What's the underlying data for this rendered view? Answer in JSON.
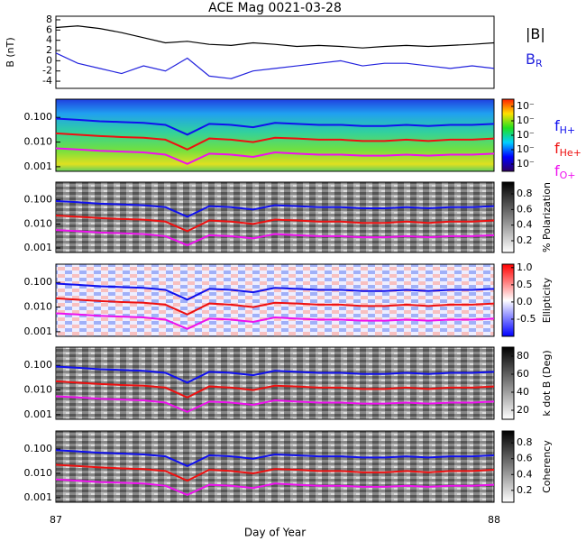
{
  "title": "ACE Mag 0021-03-28",
  "x_label": "Day of Year",
  "xlim": [
    87,
    88
  ],
  "xticks": [
    87,
    88
  ],
  "chart_data": [
    {
      "type": "line",
      "y_label": "B (nT)",
      "ylim": [
        -5.4,
        8.7
      ],
      "yticks": [
        -4,
        -2,
        0,
        2,
        4,
        6,
        8
      ],
      "x": [
        87,
        87.05,
        87.1,
        87.15,
        87.2,
        87.25,
        87.3,
        87.35,
        87.4,
        87.45,
        87.5,
        87.55,
        87.6,
        87.65,
        87.7,
        87.75,
        87.8,
        87.85,
        87.9,
        87.95,
        88
      ],
      "series": [
        {
          "name": "|B|",
          "color": "#000000",
          "values": [
            6.5,
            6.8,
            6.3,
            5.5,
            4.5,
            3.5,
            3.8,
            3.2,
            3.0,
            3.5,
            3.2,
            2.8,
            3.0,
            2.8,
            2.5,
            2.8,
            3.0,
            2.8,
            3.0,
            3.2,
            3.5
          ]
        },
        {
          "name": "B",
          "name_sub": "R",
          "color": "#2222dd",
          "values": [
            1.5,
            -0.5,
            -1.5,
            -2.5,
            -1.0,
            -2.0,
            0.5,
            -3.0,
            -3.5,
            -2.0,
            -1.5,
            -1.0,
            -0.5,
            0,
            -1.0,
            -0.5,
            -0.5,
            -1.0,
            -1.5,
            -1.0,
            -1.5
          ]
        }
      ]
    },
    {
      "type": "spectrogram",
      "colormap": "rainbow",
      "log_y": true,
      "ylim": [
        0.00065,
        0.55
      ],
      "yticks": [
        {
          "value": 0.001,
          "label": "0.001"
        },
        {
          "value": 0.01,
          "label": "0.010"
        },
        {
          "value": 0.1,
          "label": "0.100"
        }
      ],
      "clim": [
        0,
        5
      ],
      "cticks": [
        {
          "value": 0.5,
          "label": "10⁻"
        },
        {
          "value": 1.5,
          "label": "10⁻"
        },
        {
          "value": 2.5,
          "label": "10⁻"
        },
        {
          "value": 3.5,
          "label": "10⁻"
        },
        {
          "value": 4.5,
          "label": "10⁻"
        }
      ],
      "x": [
        87,
        87.05,
        87.1,
        87.15,
        87.2,
        87.25,
        87.3,
        87.35,
        87.4,
        87.45,
        87.5,
        87.55,
        87.6,
        87.65,
        87.7,
        87.75,
        87.8,
        87.85,
        87.9,
        87.95,
        88
      ],
      "series": [
        {
          "name": "f",
          "name_sub": "H+",
          "color": "#1010ee",
          "values": [
            0.09,
            0.08,
            0.07,
            0.065,
            0.06,
            0.05,
            0.02,
            0.055,
            0.05,
            0.04,
            0.06,
            0.055,
            0.05,
            0.05,
            0.045,
            0.045,
            0.05,
            0.045,
            0.05,
            0.05,
            0.055
          ]
        },
        {
          "name": "f",
          "name_sub": "He+",
          "color": "#ee1010",
          "values": [
            0.0225,
            0.02,
            0.0175,
            0.016,
            0.015,
            0.0125,
            0.005,
            0.014,
            0.0125,
            0.01,
            0.015,
            0.014,
            0.0125,
            0.0125,
            0.011,
            0.011,
            0.0125,
            0.011,
            0.0125,
            0.0125,
            0.014
          ]
        },
        {
          "name": "f",
          "name_sub": "O+",
          "color": "#ee10ee",
          "values": [
            0.0056,
            0.005,
            0.0044,
            0.0041,
            0.0038,
            0.0031,
            0.0013,
            0.0034,
            0.0031,
            0.0025,
            0.0038,
            0.0034,
            0.0031,
            0.0031,
            0.0028,
            0.0028,
            0.0031,
            0.0028,
            0.0031,
            0.0031,
            0.0034
          ]
        }
      ]
    },
    {
      "type": "spectrogram",
      "colormap": "gray",
      "log_y": true,
      "ylim": [
        0.00065,
        0.55
      ],
      "yticks": [
        {
          "value": 0.001,
          "label": "0.001"
        },
        {
          "value": 0.01,
          "label": "0.010"
        },
        {
          "value": 0.1,
          "label": "0.100"
        }
      ],
      "colorbar_label": "% Polarization",
      "clim": [
        0.05,
        0.95
      ],
      "cticks": [
        0.2,
        0.4,
        0.6,
        0.8
      ],
      "x": [
        87,
        87.05,
        87.1,
        87.15,
        87.2,
        87.25,
        87.3,
        87.35,
        87.4,
        87.45,
        87.5,
        87.55,
        87.6,
        87.65,
        87.7,
        87.75,
        87.8,
        87.85,
        87.9,
        87.95,
        88
      ],
      "series": [
        {
          "color": "#1010ee",
          "values": [
            0.09,
            0.08,
            0.07,
            0.065,
            0.06,
            0.05,
            0.02,
            0.055,
            0.05,
            0.04,
            0.06,
            0.055,
            0.05,
            0.05,
            0.045,
            0.045,
            0.05,
            0.045,
            0.05,
            0.05,
            0.055
          ]
        },
        {
          "color": "#ee1010",
          "values": [
            0.0225,
            0.02,
            0.0175,
            0.016,
            0.015,
            0.0125,
            0.005,
            0.014,
            0.0125,
            0.01,
            0.015,
            0.014,
            0.0125,
            0.0125,
            0.011,
            0.011,
            0.0125,
            0.011,
            0.0125,
            0.0125,
            0.014
          ]
        },
        {
          "color": "#ee10ee",
          "values": [
            0.0056,
            0.005,
            0.0044,
            0.0041,
            0.0038,
            0.0031,
            0.0013,
            0.0034,
            0.0031,
            0.0025,
            0.0038,
            0.0034,
            0.0031,
            0.0031,
            0.0028,
            0.0028,
            0.0031,
            0.0028,
            0.0031,
            0.0031,
            0.0034
          ]
        }
      ]
    },
    {
      "type": "spectrogram",
      "colormap": "bwr",
      "log_y": true,
      "ylim": [
        0.00065,
        0.55
      ],
      "yticks": [
        {
          "value": 0.001,
          "label": "0.001"
        },
        {
          "value": 0.01,
          "label": "0.010"
        },
        {
          "value": 0.1,
          "label": "0.100"
        }
      ],
      "colorbar_label": "Ellipticity",
      "clim": [
        -1,
        1.1
      ],
      "cticks": [
        -0.5,
        {
          "value": 0,
          "label": "0.0"
        },
        0.5,
        {
          "value": 1,
          "label": "1.0"
        }
      ],
      "x": [
        87,
        87.05,
        87.1,
        87.15,
        87.2,
        87.25,
        87.3,
        87.35,
        87.4,
        87.45,
        87.5,
        87.55,
        87.6,
        87.65,
        87.7,
        87.75,
        87.8,
        87.85,
        87.9,
        87.95,
        88
      ],
      "series": [
        {
          "color": "#1010ee",
          "values": [
            0.09,
            0.08,
            0.07,
            0.065,
            0.06,
            0.05,
            0.02,
            0.055,
            0.05,
            0.04,
            0.06,
            0.055,
            0.05,
            0.05,
            0.045,
            0.045,
            0.05,
            0.045,
            0.05,
            0.05,
            0.055
          ]
        },
        {
          "color": "#ee1010",
          "values": [
            0.0225,
            0.02,
            0.0175,
            0.016,
            0.015,
            0.0125,
            0.005,
            0.014,
            0.0125,
            0.01,
            0.015,
            0.014,
            0.0125,
            0.0125,
            0.011,
            0.011,
            0.0125,
            0.011,
            0.0125,
            0.0125,
            0.014
          ]
        },
        {
          "color": "#ee10ee",
          "values": [
            0.0056,
            0.005,
            0.0044,
            0.0041,
            0.0038,
            0.0031,
            0.0013,
            0.0034,
            0.0031,
            0.0025,
            0.0038,
            0.0034,
            0.0031,
            0.0031,
            0.0028,
            0.0028,
            0.0031,
            0.0028,
            0.0031,
            0.0031,
            0.0034
          ]
        }
      ]
    },
    {
      "type": "spectrogram",
      "colormap": "gray",
      "log_y": true,
      "ylim": [
        0.00065,
        0.55
      ],
      "yticks": [
        {
          "value": 0.001,
          "label": "0.001"
        },
        {
          "value": 0.01,
          "label": "0.010"
        },
        {
          "value": 0.1,
          "label": "0.100"
        }
      ],
      "colorbar_label": "k dot B (Deg)",
      "clim": [
        10,
        90
      ],
      "cticks": [
        20,
        40,
        60,
        80
      ],
      "x": [
        87,
        87.05,
        87.1,
        87.15,
        87.2,
        87.25,
        87.3,
        87.35,
        87.4,
        87.45,
        87.5,
        87.55,
        87.6,
        87.65,
        87.7,
        87.75,
        87.8,
        87.85,
        87.9,
        87.95,
        88
      ],
      "series": [
        {
          "color": "#1010ee",
          "values": [
            0.09,
            0.08,
            0.07,
            0.065,
            0.06,
            0.05,
            0.02,
            0.055,
            0.05,
            0.04,
            0.06,
            0.055,
            0.05,
            0.05,
            0.045,
            0.045,
            0.05,
            0.045,
            0.05,
            0.05,
            0.055
          ]
        },
        {
          "color": "#ee1010",
          "values": [
            0.0225,
            0.02,
            0.0175,
            0.016,
            0.015,
            0.0125,
            0.005,
            0.014,
            0.0125,
            0.01,
            0.015,
            0.014,
            0.0125,
            0.0125,
            0.011,
            0.011,
            0.0125,
            0.011,
            0.0125,
            0.0125,
            0.014
          ]
        },
        {
          "color": "#ee10ee",
          "values": [
            0.0056,
            0.005,
            0.0044,
            0.0041,
            0.0038,
            0.0031,
            0.0013,
            0.0034,
            0.0031,
            0.0025,
            0.0038,
            0.0034,
            0.0031,
            0.0031,
            0.0028,
            0.0028,
            0.0031,
            0.0028,
            0.0031,
            0.0031,
            0.0034
          ]
        }
      ]
    },
    {
      "type": "spectrogram",
      "colormap": "gray",
      "log_y": true,
      "ylim": [
        0.00065,
        0.55
      ],
      "yticks": [
        {
          "value": 0.001,
          "label": "0.001"
        },
        {
          "value": 0.01,
          "label": "0.010"
        },
        {
          "value": 0.1,
          "label": "0.100"
        }
      ],
      "colorbar_label": "Coherency",
      "clim": [
        0.05,
        0.95
      ],
      "cticks": [
        0.2,
        0.4,
        0.6,
        0.8
      ],
      "x": [
        87,
        87.05,
        87.1,
        87.15,
        87.2,
        87.25,
        87.3,
        87.35,
        87.4,
        87.45,
        87.5,
        87.55,
        87.6,
        87.65,
        87.7,
        87.75,
        87.8,
        87.85,
        87.9,
        87.95,
        88
      ],
      "series": [
        {
          "color": "#1010ee",
          "values": [
            0.09,
            0.08,
            0.07,
            0.065,
            0.06,
            0.05,
            0.02,
            0.055,
            0.05,
            0.04,
            0.06,
            0.055,
            0.05,
            0.05,
            0.045,
            0.045,
            0.05,
            0.045,
            0.05,
            0.05,
            0.055
          ]
        },
        {
          "color": "#ee1010",
          "values": [
            0.0225,
            0.02,
            0.0175,
            0.016,
            0.015,
            0.0125,
            0.005,
            0.014,
            0.0125,
            0.01,
            0.015,
            0.014,
            0.0125,
            0.0125,
            0.011,
            0.011,
            0.0125,
            0.011,
            0.0125,
            0.0125,
            0.014
          ]
        },
        {
          "color": "#ee10ee",
          "values": [
            0.0056,
            0.005,
            0.0044,
            0.0041,
            0.0038,
            0.0031,
            0.0013,
            0.0034,
            0.0031,
            0.0025,
            0.0038,
            0.0034,
            0.0031,
            0.0031,
            0.0028,
            0.0028,
            0.0031,
            0.0028,
            0.0031,
            0.0031,
            0.0034
          ]
        }
      ]
    }
  ]
}
